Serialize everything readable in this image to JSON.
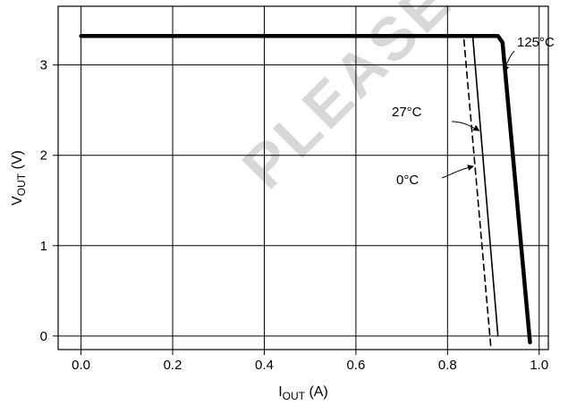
{
  "chart_data": {
    "type": "line",
    "xlabel": {
      "main": "I",
      "sub": "OUT",
      "unit": " (A)"
    },
    "ylabel": {
      "main": "V",
      "sub": "OUT",
      "unit": " (V)"
    },
    "xlim": [
      -0.05,
      1.02
    ],
    "ylim": [
      -0.15,
      3.65
    ],
    "x_ticks": [
      0.0,
      0.2,
      0.4,
      0.6,
      0.8,
      1.0
    ],
    "x_tick_labels": [
      "0.0",
      "0.2",
      "0.4",
      "0.6",
      "0.8",
      "1.0"
    ],
    "y_ticks": [
      0,
      1,
      2,
      3
    ],
    "y_tick_labels": [
      "0",
      "1",
      "2",
      "3"
    ],
    "grid": true,
    "series": [
      {
        "name": "125°C",
        "style": "solid-thick",
        "color": "#000000",
        "x": [
          0.0,
          0.91,
          0.92,
          0.98
        ],
        "y": [
          3.32,
          3.32,
          3.25,
          -0.07
        ]
      },
      {
        "name": "27°C",
        "style": "solid",
        "color": "#000000",
        "x": [
          0.0,
          0.855,
          0.91
        ],
        "y": [
          3.32,
          3.32,
          0.0
        ]
      },
      {
        "name": "0°C",
        "style": "dashed",
        "color": "#000000",
        "x": [
          0.0,
          0.835,
          0.895
        ],
        "y": [
          3.32,
          3.32,
          -0.15
        ]
      }
    ],
    "watermark": "PLEASE CONSULT REPRESENTATIVE"
  }
}
